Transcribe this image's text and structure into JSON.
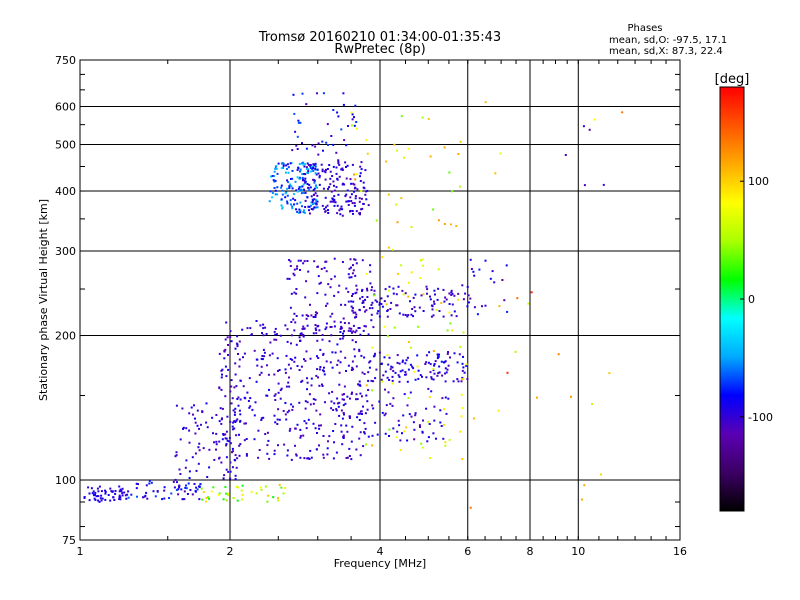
{
  "chart_data": {
    "type": "scatter",
    "title": "Tromsø 20160210 01:34:00-01:35:43",
    "subtitle": "RwPretec (8p)",
    "xlabel": "Frequency [MHz]",
    "ylabel": "Stationary phase Virtual Height [km]",
    "x_scale": "log",
    "y_scale": "log",
    "xlim": [
      1,
      16
    ],
    "ylim": [
      75,
      750
    ],
    "x_ticks": [
      {
        "value": 1,
        "label": "1"
      },
      {
        "value": 2,
        "label": "2"
      },
      {
        "value": 4,
        "label": "4"
      },
      {
        "value": 6,
        "label": "6"
      },
      {
        "value": 8,
        "label": "8"
      },
      {
        "value": 10,
        "label": "10"
      },
      {
        "value": 16,
        "label": "16"
      }
    ],
    "y_ticks": [
      {
        "value": 75,
        "label": "75"
      },
      {
        "value": 100,
        "label": "100"
      },
      {
        "value": 200,
        "label": "200"
      },
      {
        "value": 300,
        "label": "300"
      },
      {
        "value": 400,
        "label": "400"
      },
      {
        "value": 500,
        "label": "500"
      },
      {
        "value": 600,
        "label": "600"
      },
      {
        "value": 750,
        "label": "750"
      }
    ],
    "grid": true,
    "legend": {
      "title": "Phases",
      "lines": [
        "mean, sd,O: -97.5, 17.1",
        "mean, sd,X:  87.3, 22.4"
      ],
      "placement": "top-right"
    },
    "colorbar": {
      "label": "[deg]",
      "range": [
        -180,
        180
      ],
      "ticks": [
        {
          "value": 100,
          "label": "100"
        },
        {
          "value": 0,
          "label": "0"
        },
        {
          "value": -100,
          "label": "-100"
        }
      ]
    },
    "colormap": [
      "#000000",
      "#3c0064",
      "#5a00b4",
      "#0000ff",
      "#00aaff",
      "#00ffff",
      "#00ff00",
      "#aaff00",
      "#ffff00",
      "#ffaa00",
      "#ff5500",
      "#ff0000"
    ],
    "point_clusters": [
      {
        "f_min": 1.02,
        "f_max": 1.25,
        "h_min": 90,
        "h_max": 97,
        "phase": -95,
        "spread": 10,
        "count": 60
      },
      {
        "f_min": 1.25,
        "f_max": 1.75,
        "h_min": 91,
        "h_max": 100,
        "phase": -90,
        "spread": 25,
        "count": 55
      },
      {
        "f_min": 1.75,
        "f_max": 2.6,
        "h_min": 90,
        "h_max": 98,
        "phase": 60,
        "spread": 50,
        "count": 40
      },
      {
        "f_min": 1.55,
        "f_max": 2.1,
        "h_min": 100,
        "h_max": 145,
        "phase": -100,
        "spread": 15,
        "count": 90
      },
      {
        "f_min": 1.9,
        "f_max": 3.8,
        "h_min": 110,
        "h_max": 215,
        "phase": -100,
        "spread": 15,
        "count": 420
      },
      {
        "f_min": 2.6,
        "f_max": 3.9,
        "h_min": 200,
        "h_max": 290,
        "phase": -105,
        "spread": 12,
        "count": 130
      },
      {
        "f_min": 2.4,
        "f_max": 3.0,
        "h_min": 360,
        "h_max": 460,
        "phase": -60,
        "spread": 30,
        "count": 160
      },
      {
        "f_min": 2.8,
        "f_max": 3.8,
        "h_min": 355,
        "h_max": 460,
        "phase": -100,
        "spread": 15,
        "count": 170
      },
      {
        "f_min": 2.6,
        "f_max": 3.6,
        "h_min": 460,
        "h_max": 640,
        "phase": -90,
        "spread": 25,
        "count": 45
      },
      {
        "f_min": 3.3,
        "f_max": 5.5,
        "h_min": 120,
        "h_max": 155,
        "phase": -100,
        "spread": 15,
        "count": 80
      },
      {
        "f_min": 3.8,
        "f_max": 6.0,
        "h_min": 160,
        "h_max": 185,
        "phase": -95,
        "spread": 18,
        "count": 110
      },
      {
        "f_min": 3.5,
        "f_max": 6.0,
        "h_min": 218,
        "h_max": 255,
        "phase": -100,
        "spread": 15,
        "count": 110
      },
      {
        "f_min": 3.7,
        "f_max": 6.0,
        "h_min": 110,
        "h_max": 310,
        "phase": 75,
        "spread": 40,
        "count": 70
      },
      {
        "f_min": 3.5,
        "f_max": 6.0,
        "h_min": 330,
        "h_max": 600,
        "phase": 80,
        "spread": 50,
        "count": 35
      },
      {
        "f_min": 6.0,
        "f_max": 7.2,
        "h_min": 215,
        "h_max": 290,
        "phase": -100,
        "spread": 25,
        "count": 20
      },
      {
        "f_min": 6.0,
        "f_max": 12.5,
        "h_min": 80,
        "h_max": 640,
        "phase": 110,
        "spread": 60,
        "count": 22
      },
      {
        "f_min": 8.0,
        "f_max": 12.5,
        "h_min": 280,
        "h_max": 560,
        "phase": -110,
        "spread": 15,
        "count": 5
      }
    ]
  }
}
